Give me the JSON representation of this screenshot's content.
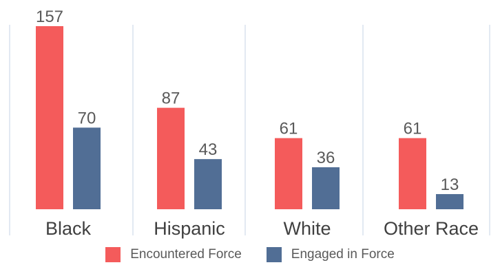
{
  "chart_data": {
    "type": "bar",
    "categories": [
      "Black",
      "Hispanic",
      "White",
      "Other Race"
    ],
    "series": [
      {
        "name": "Encountered Force",
        "values": [
          157,
          87,
          61,
          61
        ],
        "color": "#f45b5b"
      },
      {
        "name": "Engaged in Force",
        "values": [
          70,
          43,
          36,
          13
        ],
        "color": "#516e95"
      }
    ],
    "title": "",
    "xlabel": "",
    "ylabel": "",
    "ylim": [
      0,
      160
    ],
    "grid": "vertical category separators",
    "legend_position": "bottom-center",
    "data_labels": true
  }
}
